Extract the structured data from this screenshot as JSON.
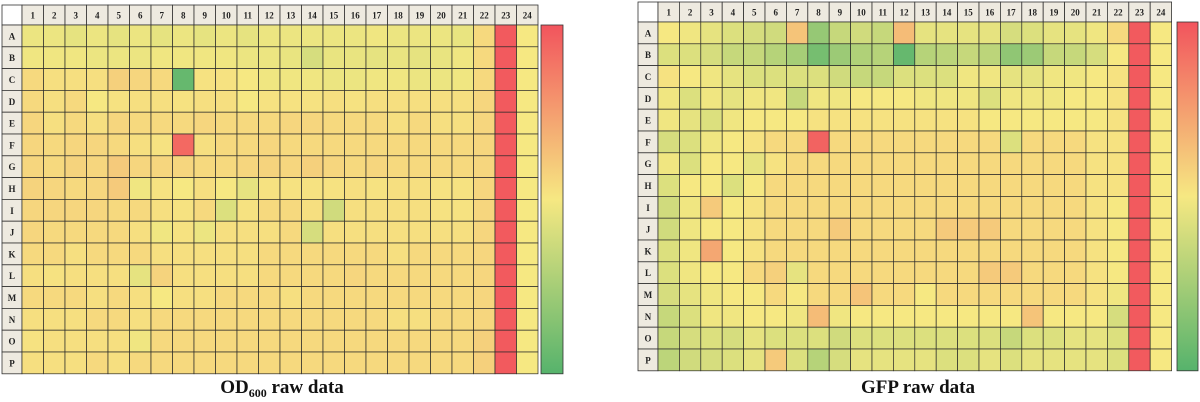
{
  "chart_data": [
    {
      "type": "heatmap",
      "title_main": "OD",
      "title_sub": "600",
      "title_rest": " raw data",
      "columns": [
        "1",
        "2",
        "3",
        "4",
        "5",
        "6",
        "7",
        "8",
        "9",
        "10",
        "11",
        "12",
        "13",
        "14",
        "15",
        "16",
        "17",
        "18",
        "19",
        "20",
        "21",
        "22",
        "23",
        "24"
      ],
      "rows": [
        "A",
        "B",
        "C",
        "D",
        "E",
        "F",
        "G",
        "H",
        "I",
        "J",
        "K",
        "L",
        "M",
        "N",
        "O",
        "P"
      ],
      "scale": [
        0,
        1
      ],
      "colorscale": [
        "#56b36c",
        "#f6e882",
        "#f2545d"
      ],
      "values": [
        [
          0.47,
          0.47,
          0.45,
          0.47,
          0.45,
          0.47,
          0.45,
          0.47,
          0.45,
          0.47,
          0.45,
          0.47,
          0.47,
          0.47,
          0.47,
          0.47,
          0.48,
          0.47,
          0.47,
          0.47,
          0.46,
          0.55,
          0.98,
          0.5
        ],
        [
          0.48,
          0.48,
          0.48,
          0.47,
          0.47,
          0.47,
          0.48,
          0.48,
          0.48,
          0.48,
          0.47,
          0.47,
          0.46,
          0.4,
          0.46,
          0.46,
          0.45,
          0.46,
          0.45,
          0.46,
          0.48,
          0.55,
          0.98,
          0.5
        ],
        [
          0.55,
          0.53,
          0.53,
          0.53,
          0.58,
          0.56,
          0.55,
          0.05,
          0.52,
          0.52,
          0.5,
          0.48,
          0.48,
          0.48,
          0.47,
          0.47,
          0.48,
          0.48,
          0.47,
          0.47,
          0.48,
          0.55,
          0.98,
          0.5
        ],
        [
          0.55,
          0.53,
          0.55,
          0.5,
          0.52,
          0.53,
          0.53,
          0.52,
          0.53,
          0.53,
          0.5,
          0.52,
          0.52,
          0.52,
          0.53,
          0.52,
          0.53,
          0.53,
          0.53,
          0.53,
          0.53,
          0.56,
          0.98,
          0.5
        ],
        [
          0.56,
          0.53,
          0.55,
          0.53,
          0.56,
          0.55,
          0.55,
          0.55,
          0.56,
          0.55,
          0.55,
          0.55,
          0.56,
          0.56,
          0.55,
          0.55,
          0.55,
          0.53,
          0.55,
          0.53,
          0.53,
          0.56,
          0.98,
          0.5
        ],
        [
          0.56,
          0.55,
          0.56,
          0.56,
          0.55,
          0.53,
          0.52,
          0.93,
          0.53,
          0.55,
          0.55,
          0.56,
          0.55,
          0.55,
          0.55,
          0.55,
          0.55,
          0.55,
          0.55,
          0.55,
          0.55,
          0.56,
          0.98,
          0.5
        ],
        [
          0.56,
          0.55,
          0.57,
          0.56,
          0.6,
          0.56,
          0.56,
          0.56,
          0.55,
          0.55,
          0.56,
          0.57,
          0.56,
          0.58,
          0.56,
          0.55,
          0.56,
          0.55,
          0.55,
          0.55,
          0.55,
          0.56,
          0.98,
          0.5
        ],
        [
          0.57,
          0.56,
          0.55,
          0.56,
          0.6,
          0.48,
          0.52,
          0.5,
          0.53,
          0.5,
          0.45,
          0.52,
          0.52,
          0.52,
          0.52,
          0.53,
          0.52,
          0.53,
          0.53,
          0.52,
          0.52,
          0.56,
          0.98,
          0.5
        ],
        [
          0.56,
          0.56,
          0.56,
          0.56,
          0.55,
          0.55,
          0.53,
          0.52,
          0.55,
          0.42,
          0.52,
          0.55,
          0.55,
          0.53,
          0.38,
          0.53,
          0.53,
          0.53,
          0.53,
          0.52,
          0.52,
          0.56,
          0.98,
          0.5
        ],
        [
          0.56,
          0.55,
          0.55,
          0.55,
          0.55,
          0.53,
          0.48,
          0.52,
          0.47,
          0.53,
          0.53,
          0.53,
          0.55,
          0.4,
          0.53,
          0.53,
          0.53,
          0.53,
          0.53,
          0.53,
          0.53,
          0.56,
          0.98,
          0.5
        ],
        [
          0.55,
          0.55,
          0.53,
          0.55,
          0.55,
          0.55,
          0.53,
          0.53,
          0.53,
          0.53,
          0.53,
          0.55,
          0.55,
          0.55,
          0.55,
          0.55,
          0.55,
          0.53,
          0.55,
          0.55,
          0.55,
          0.56,
          0.98,
          0.5
        ],
        [
          0.53,
          0.52,
          0.53,
          0.53,
          0.53,
          0.45,
          0.57,
          0.53,
          0.53,
          0.53,
          0.53,
          0.55,
          0.55,
          0.55,
          0.55,
          0.56,
          0.55,
          0.55,
          0.55,
          0.55,
          0.55,
          0.56,
          0.98,
          0.5
        ],
        [
          0.55,
          0.55,
          0.55,
          0.53,
          0.55,
          0.53,
          0.5,
          0.53,
          0.53,
          0.55,
          0.55,
          0.55,
          0.53,
          0.55,
          0.55,
          0.55,
          0.55,
          0.55,
          0.55,
          0.55,
          0.55,
          0.56,
          0.98,
          0.5
        ],
        [
          0.53,
          0.53,
          0.53,
          0.55,
          0.55,
          0.53,
          0.55,
          0.55,
          0.55,
          0.55,
          0.55,
          0.55,
          0.55,
          0.55,
          0.55,
          0.55,
          0.55,
          0.53,
          0.53,
          0.55,
          0.55,
          0.56,
          0.98,
          0.5
        ],
        [
          0.52,
          0.53,
          0.53,
          0.53,
          0.53,
          0.48,
          0.55,
          0.55,
          0.55,
          0.55,
          0.55,
          0.55,
          0.55,
          0.55,
          0.55,
          0.55,
          0.55,
          0.55,
          0.55,
          0.55,
          0.55,
          0.58,
          0.98,
          0.5
        ],
        [
          0.53,
          0.53,
          0.53,
          0.55,
          0.53,
          0.55,
          0.55,
          0.55,
          0.55,
          0.55,
          0.55,
          0.55,
          0.55,
          0.55,
          0.55,
          0.55,
          0.55,
          0.55,
          0.55,
          0.55,
          0.55,
          0.58,
          0.98,
          0.5
        ]
      ]
    },
    {
      "type": "heatmap",
      "title_main": "GFP raw data",
      "title_sub": "",
      "title_rest": "",
      "columns": [
        "1",
        "2",
        "3",
        "4",
        "5",
        "6",
        "7",
        "8",
        "9",
        "10",
        "11",
        "12",
        "13",
        "14",
        "15",
        "16",
        "17",
        "18",
        "19",
        "20",
        "21",
        "22",
        "23",
        "24"
      ],
      "rows": [
        "A",
        "B",
        "C",
        "D",
        "E",
        "F",
        "G",
        "H",
        "I",
        "J",
        "K",
        "L",
        "M",
        "N",
        "O",
        "P"
      ],
      "scale": [
        0,
        1
      ],
      "colorscale": [
        "#56b36c",
        "#f6e882",
        "#f2545d"
      ],
      "values": [
        [
          0.5,
          0.48,
          0.45,
          0.42,
          0.4,
          0.38,
          0.62,
          0.2,
          0.35,
          0.38,
          0.35,
          0.65,
          0.45,
          0.45,
          0.45,
          0.45,
          0.4,
          0.42,
          0.45,
          0.45,
          0.48,
          0.55,
          0.98,
          0.5
        ],
        [
          0.42,
          0.42,
          0.4,
          0.35,
          0.35,
          0.3,
          0.25,
          0.1,
          0.22,
          0.28,
          0.3,
          0.05,
          0.3,
          0.32,
          0.35,
          0.32,
          0.18,
          0.22,
          0.35,
          0.35,
          0.4,
          0.5,
          0.98,
          0.5
        ],
        [
          0.52,
          0.5,
          0.48,
          0.45,
          0.42,
          0.42,
          0.42,
          0.42,
          0.38,
          0.35,
          0.35,
          0.42,
          0.42,
          0.42,
          0.48,
          0.48,
          0.45,
          0.45,
          0.48,
          0.48,
          0.5,
          0.52,
          0.98,
          0.5
        ],
        [
          0.48,
          0.42,
          0.48,
          0.45,
          0.48,
          0.48,
          0.35,
          0.48,
          0.48,
          0.5,
          0.5,
          0.5,
          0.48,
          0.48,
          0.48,
          0.42,
          0.48,
          0.48,
          0.48,
          0.5,
          0.5,
          0.52,
          0.98,
          0.5
        ],
        [
          0.48,
          0.45,
          0.42,
          0.48,
          0.5,
          0.5,
          0.5,
          0.52,
          0.52,
          0.52,
          0.52,
          0.52,
          0.52,
          0.52,
          0.52,
          0.5,
          0.5,
          0.5,
          0.5,
          0.5,
          0.5,
          0.52,
          0.98,
          0.5
        ],
        [
          0.4,
          0.42,
          0.48,
          0.5,
          0.52,
          0.55,
          0.55,
          0.95,
          0.55,
          0.55,
          0.55,
          0.55,
          0.55,
          0.55,
          0.55,
          0.55,
          0.42,
          0.55,
          0.55,
          0.55,
          0.52,
          0.52,
          0.98,
          0.5
        ],
        [
          0.48,
          0.42,
          0.5,
          0.5,
          0.45,
          0.52,
          0.55,
          0.55,
          0.55,
          0.55,
          0.55,
          0.55,
          0.55,
          0.55,
          0.55,
          0.55,
          0.55,
          0.55,
          0.55,
          0.55,
          0.52,
          0.52,
          0.98,
          0.5
        ],
        [
          0.42,
          0.5,
          0.5,
          0.42,
          0.5,
          0.55,
          0.55,
          0.55,
          0.55,
          0.55,
          0.55,
          0.55,
          0.55,
          0.55,
          0.55,
          0.55,
          0.55,
          0.55,
          0.55,
          0.55,
          0.52,
          0.52,
          0.98,
          0.5
        ],
        [
          0.38,
          0.48,
          0.6,
          0.5,
          0.52,
          0.55,
          0.55,
          0.55,
          0.55,
          0.55,
          0.55,
          0.55,
          0.55,
          0.55,
          0.55,
          0.55,
          0.55,
          0.55,
          0.55,
          0.55,
          0.52,
          0.5,
          0.98,
          0.5
        ],
        [
          0.38,
          0.48,
          0.5,
          0.5,
          0.52,
          0.55,
          0.55,
          0.55,
          0.6,
          0.55,
          0.55,
          0.55,
          0.55,
          0.6,
          0.6,
          0.6,
          0.55,
          0.55,
          0.55,
          0.55,
          0.52,
          0.5,
          0.98,
          0.5
        ],
        [
          0.42,
          0.48,
          0.72,
          0.5,
          0.52,
          0.55,
          0.55,
          0.55,
          0.55,
          0.55,
          0.55,
          0.55,
          0.55,
          0.55,
          0.55,
          0.55,
          0.55,
          0.55,
          0.55,
          0.55,
          0.52,
          0.5,
          0.98,
          0.5
        ],
        [
          0.42,
          0.48,
          0.5,
          0.5,
          0.55,
          0.58,
          0.45,
          0.55,
          0.55,
          0.55,
          0.55,
          0.55,
          0.55,
          0.55,
          0.55,
          0.6,
          0.6,
          0.55,
          0.55,
          0.55,
          0.52,
          0.5,
          0.98,
          0.5
        ],
        [
          0.4,
          0.45,
          0.48,
          0.5,
          0.5,
          0.55,
          0.5,
          0.55,
          0.55,
          0.62,
          0.55,
          0.55,
          0.5,
          0.55,
          0.55,
          0.55,
          0.55,
          0.55,
          0.55,
          0.55,
          0.52,
          0.48,
          0.98,
          0.5
        ],
        [
          0.35,
          0.42,
          0.48,
          0.48,
          0.5,
          0.5,
          0.48,
          0.65,
          0.48,
          0.5,
          0.5,
          0.5,
          0.5,
          0.5,
          0.5,
          0.5,
          0.5,
          0.62,
          0.5,
          0.5,
          0.5,
          0.4,
          0.98,
          0.5
        ],
        [
          0.35,
          0.4,
          0.42,
          0.4,
          0.45,
          0.42,
          0.42,
          0.42,
          0.38,
          0.42,
          0.42,
          0.42,
          0.42,
          0.42,
          0.42,
          0.42,
          0.35,
          0.42,
          0.42,
          0.45,
          0.45,
          0.42,
          0.98,
          0.5
        ],
        [
          0.32,
          0.38,
          0.4,
          0.42,
          0.45,
          0.6,
          0.42,
          0.3,
          0.4,
          0.45,
          0.45,
          0.45,
          0.45,
          0.42,
          0.42,
          0.45,
          0.42,
          0.45,
          0.45,
          0.45,
          0.45,
          0.42,
          0.98,
          0.5
        ]
      ]
    }
  ]
}
